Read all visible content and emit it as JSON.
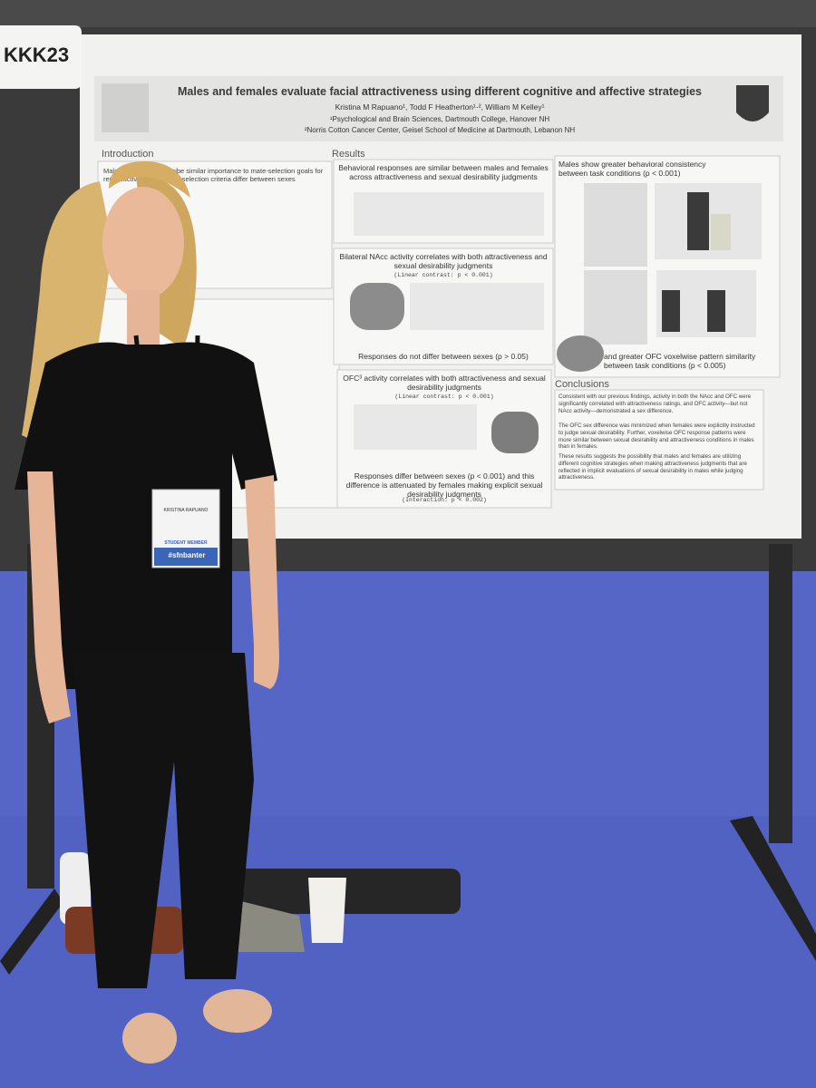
{
  "booth": {
    "label": "KKK23"
  },
  "poster": {
    "title": "Males and females evaluate facial attractiveness using different cognitive and affective strategies",
    "authors": "Kristina M Rapuano¹, Todd F Heatherton¹·², William M Kelley¹",
    "affiliations": [
      "¹Psychological and Brain Sciences, Dartmouth College, Hanover NH",
      "²Norris Cotton Cancer Center, Geisel School of Medicine at Dartmouth, Lebanon NH"
    ],
    "introduction": {
      "heading": "Introduction",
      "text": "Males and females ascribe similar importance to mate-selection goals for reproductive success, yet selection criteria differ between sexes"
    },
    "results": {
      "heading": "Results",
      "panels": [
        {
          "headline": "Behavioral responses are similar between males and females across attractiveness and sexual desirability judgments"
        },
        {
          "headline": "Bilateral NAcc activity correlates with both attractiveness and sexual desirability judgments",
          "stat": "(Linear contrast: p < 0.001)",
          "footer": "Responses do not differ between sexes (p > 0.05)"
        },
        {
          "headline": "OFC³ activity correlates with both attractiveness and sexual desirability judgments",
          "stat": "(Linear contrast: p < 0.001)",
          "footer": "Responses differ between sexes (p < 0.001) and this difference is attenuated by females making explicit sexual desirability judgments",
          "footer_stat": "(Interaction: p < 0.002)"
        }
      ]
    },
    "consistency": {
      "headline": "Males show greater behavioral consistency between task conditions (p < 0.001)",
      "footer": "and greater OFC voxelwise pattern similarity between task conditions (p < 0.005)"
    },
    "conclusions": {
      "heading": "Conclusions",
      "paragraphs": [
        "Consistent with our previous findings, activity in both the NAcc and OFC were significantly correlated with attractiveness ratings, and OFC activity—but not NAcc activity—demonstrated a sex difference.",
        "The OFC sex difference was minimized when females were explicitly instructed to judge sexual desirability. Further, voxelwise OFC response patterns were more similar between sexual desirability and attractiveness conditions in males than in females.",
        "These results suggests the possibility that males and females are utilizing different cognitive strategies when making attractiveness judgments that are reflected in implicit evaluations of sexual desirability in males while judging attractiveness."
      ]
    }
  },
  "badge": {
    "name": "KRISTINA RAPUANO",
    "type": "STUDENT MEMBER",
    "hashtag": "#sfnbanter"
  }
}
